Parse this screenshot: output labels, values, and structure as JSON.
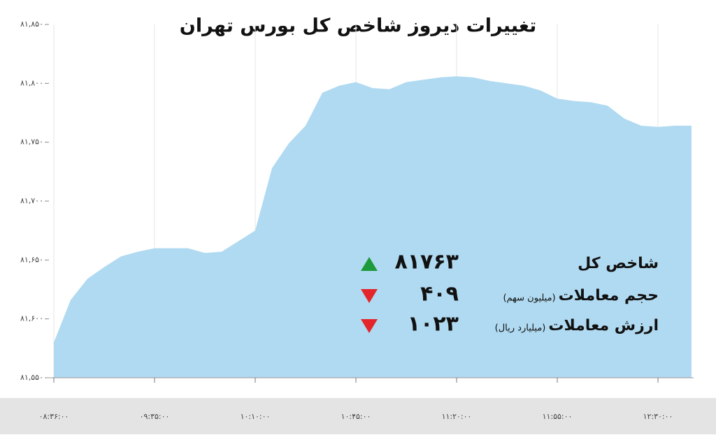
{
  "chart_data": {
    "type": "area",
    "title": "تغییرات دیروز شاخص کل بورس تهران",
    "categories": [
      "۰۸:۳۶:۰۰",
      null,
      null,
      null,
      null,
      null,
      "۰۹:۳۵:۰۰",
      null,
      null,
      null,
      null,
      null,
      "۱۰:۱۰:۰۰",
      null,
      null,
      null,
      null,
      null,
      "۱۰:۴۵:۰۰",
      null,
      null,
      null,
      null,
      null,
      "۱۱:۲۰:۰۰",
      null,
      null,
      null,
      null,
      null,
      "۱۱:۵۵:۰۰",
      null,
      null,
      null,
      null,
      null,
      "۱۲:۳۰:۰۰",
      null,
      null
    ],
    "values": [
      81580,
      81616,
      81634,
      81644,
      81653,
      81657,
      81660,
      81660,
      81660,
      81656,
      81657,
      81666,
      81675,
      81728,
      81749,
      81764,
      81792,
      81798,
      81801,
      81796,
      81795,
      81801,
      81803,
      81805,
      81806,
      81805,
      81802,
      81800,
      81798,
      81794,
      81787,
      81785,
      81784,
      81781,
      81770,
      81764,
      81763,
      81764,
      81764
    ],
    "color": "#b0daf1",
    "ylim": [
      81550,
      81850
    ],
    "yticks": [
      {
        "value": 81550,
        "label": "۸۱,۵۵۰"
      },
      {
        "value": 81600,
        "label": "۸۱,۶۰۰"
      },
      {
        "value": 81650,
        "label": "۸۱,۶۵۰"
      },
      {
        "value": 81700,
        "label": "۸۱,۷۰۰"
      },
      {
        "value": 81750,
        "label": "۸۱,۷۵۰"
      },
      {
        "value": 81800,
        "label": "۸۱,۸۰۰"
      },
      {
        "value": 81850,
        "label": "۸۱,۸۵۰"
      }
    ],
    "grid": true,
    "stats": [
      {
        "label": "شاخص کل",
        "value": 81763,
        "value_label": "۸۱۷۶۳",
        "direction": "up",
        "color": "#1d9a3c"
      },
      {
        "label": "حجم معاملات",
        "unit": "(میلیون سهم)",
        "value": 409,
        "value_label": "۴۰۹",
        "direction": "down",
        "color": "#e3262b"
      },
      {
        "label": "ارزش معاملات",
        "unit": "(میلیارد ریال)",
        "value": 1023,
        "value_label": "۱۰۲۳",
        "direction": "down",
        "color": "#e3262b"
      }
    ]
  }
}
